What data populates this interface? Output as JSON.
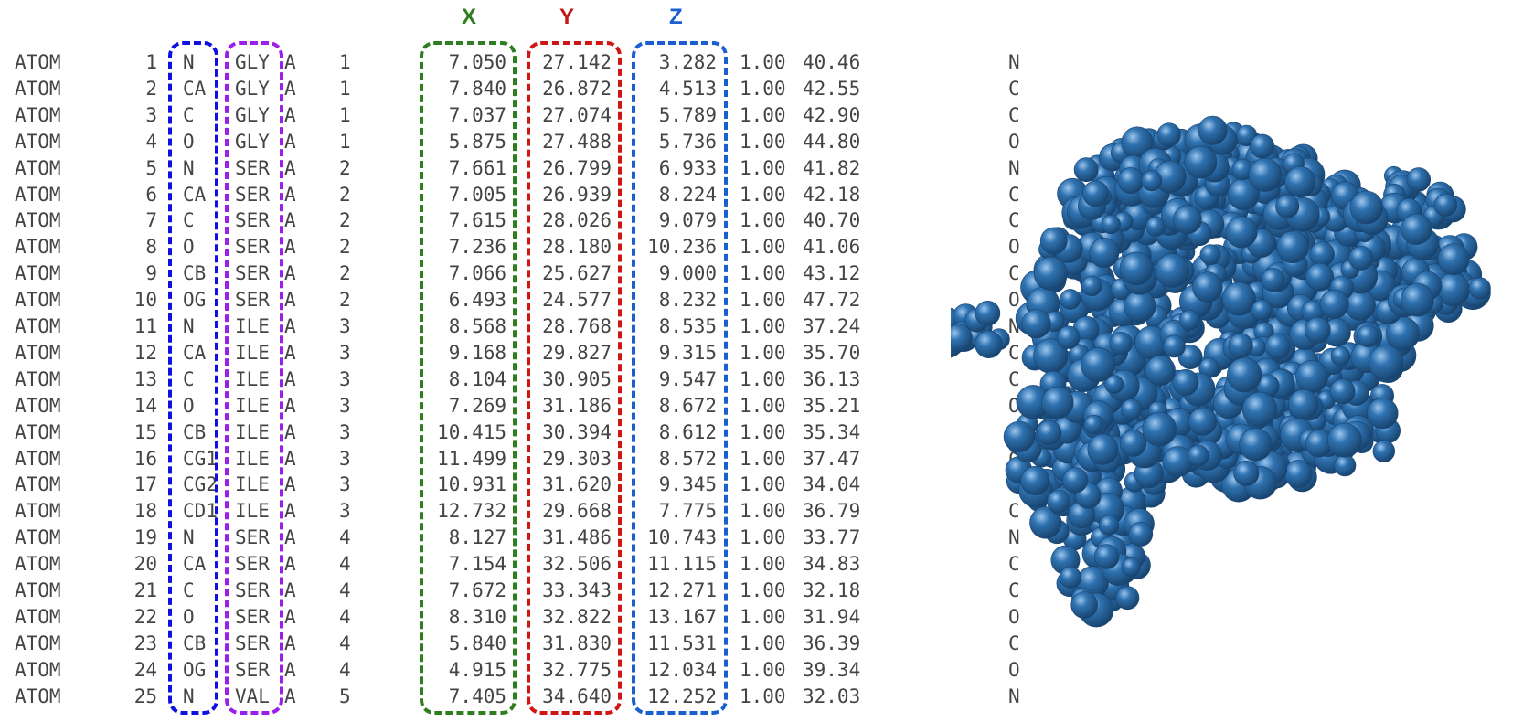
{
  "axis_labels": {
    "x": "X",
    "y": "Y",
    "z": "Z"
  },
  "colors": {
    "text": "#444444",
    "atom_name_box": "#1010e0",
    "residue_box": "#9b1fe8",
    "x_box": "#2e7d1e",
    "y_box": "#d01515",
    "z_box": "#1a5fd0",
    "x_label": "#2e7d1e",
    "y_label": "#c01818",
    "z_label": "#1a5fd0",
    "molecule": "#2f72b0"
  },
  "atoms": [
    {
      "record": "ATOM",
      "serial": "1",
      "name": "N",
      "residue": "GLY",
      "chain": "A",
      "resseq": "1",
      "x": "7.050",
      "y": "27.142",
      "z": "3.282",
      "occupancy": "1.00",
      "bfactor": "40.46",
      "element": "N"
    },
    {
      "record": "ATOM",
      "serial": "2",
      "name": "CA",
      "residue": "GLY",
      "chain": "A",
      "resseq": "1",
      "x": "7.840",
      "y": "26.872",
      "z": "4.513",
      "occupancy": "1.00",
      "bfactor": "42.55",
      "element": "C"
    },
    {
      "record": "ATOM",
      "serial": "3",
      "name": "C",
      "residue": "GLY",
      "chain": "A",
      "resseq": "1",
      "x": "7.037",
      "y": "27.074",
      "z": "5.789",
      "occupancy": "1.00",
      "bfactor": "42.90",
      "element": "C"
    },
    {
      "record": "ATOM",
      "serial": "4",
      "name": "O",
      "residue": "GLY",
      "chain": "A",
      "resseq": "1",
      "x": "5.875",
      "y": "27.488",
      "z": "5.736",
      "occupancy": "1.00",
      "bfactor": "44.80",
      "element": "O"
    },
    {
      "record": "ATOM",
      "serial": "5",
      "name": "N",
      "residue": "SER",
      "chain": "A",
      "resseq": "2",
      "x": "7.661",
      "y": "26.799",
      "z": "6.933",
      "occupancy": "1.00",
      "bfactor": "41.82",
      "element": "N"
    },
    {
      "record": "ATOM",
      "serial": "6",
      "name": "CA",
      "residue": "SER",
      "chain": "A",
      "resseq": "2",
      "x": "7.005",
      "y": "26.939",
      "z": "8.224",
      "occupancy": "1.00",
      "bfactor": "42.18",
      "element": "C"
    },
    {
      "record": "ATOM",
      "serial": "7",
      "name": "C",
      "residue": "SER",
      "chain": "A",
      "resseq": "2",
      "x": "7.615",
      "y": "28.026",
      "z": "9.079",
      "occupancy": "1.00",
      "bfactor": "40.70",
      "element": "C"
    },
    {
      "record": "ATOM",
      "serial": "8",
      "name": "O",
      "residue": "SER",
      "chain": "A",
      "resseq": "2",
      "x": "7.236",
      "y": "28.180",
      "z": "10.236",
      "occupancy": "1.00",
      "bfactor": "41.06",
      "element": "O"
    },
    {
      "record": "ATOM",
      "serial": "9",
      "name": "CB",
      "residue": "SER",
      "chain": "A",
      "resseq": "2",
      "x": "7.066",
      "y": "25.627",
      "z": "9.000",
      "occupancy": "1.00",
      "bfactor": "43.12",
      "element": "C"
    },
    {
      "record": "ATOM",
      "serial": "10",
      "name": "OG",
      "residue": "SER",
      "chain": "A",
      "resseq": "2",
      "x": "6.493",
      "y": "24.577",
      "z": "8.232",
      "occupancy": "1.00",
      "bfactor": "47.72",
      "element": "O"
    },
    {
      "record": "ATOM",
      "serial": "11",
      "name": "N",
      "residue": "ILE",
      "chain": "A",
      "resseq": "3",
      "x": "8.568",
      "y": "28.768",
      "z": "8.535",
      "occupancy": "1.00",
      "bfactor": "37.24",
      "element": "N"
    },
    {
      "record": "ATOM",
      "serial": "12",
      "name": "CA",
      "residue": "ILE",
      "chain": "A",
      "resseq": "3",
      "x": "9.168",
      "y": "29.827",
      "z": "9.315",
      "occupancy": "1.00",
      "bfactor": "35.70",
      "element": "C"
    },
    {
      "record": "ATOM",
      "serial": "13",
      "name": "C",
      "residue": "ILE",
      "chain": "A",
      "resseq": "3",
      "x": "8.104",
      "y": "30.905",
      "z": "9.547",
      "occupancy": "1.00",
      "bfactor": "36.13",
      "element": "C"
    },
    {
      "record": "ATOM",
      "serial": "14",
      "name": "O",
      "residue": "ILE",
      "chain": "A",
      "resseq": "3",
      "x": "7.269",
      "y": "31.186",
      "z": "8.672",
      "occupancy": "1.00",
      "bfactor": "35.21",
      "element": "O"
    },
    {
      "record": "ATOM",
      "serial": "15",
      "name": "CB",
      "residue": "ILE",
      "chain": "A",
      "resseq": "3",
      "x": "10.415",
      "y": "30.394",
      "z": "8.612",
      "occupancy": "1.00",
      "bfactor": "35.34",
      "element": "C"
    },
    {
      "record": "ATOM",
      "serial": "16",
      "name": "CG1",
      "residue": "ILE",
      "chain": "A",
      "resseq": "3",
      "x": "11.499",
      "y": "29.303",
      "z": "8.572",
      "occupancy": "1.00",
      "bfactor": "37.47",
      "element": "C"
    },
    {
      "record": "ATOM",
      "serial": "17",
      "name": "CG2",
      "residue": "ILE",
      "chain": "A",
      "resseq": "3",
      "x": "10.931",
      "y": "31.620",
      "z": "9.345",
      "occupancy": "1.00",
      "bfactor": "34.04",
      "element": "C"
    },
    {
      "record": "ATOM",
      "serial": "18",
      "name": "CD1",
      "residue": "ILE",
      "chain": "A",
      "resseq": "3",
      "x": "12.732",
      "y": "29.668",
      "z": "7.775",
      "occupancy": "1.00",
      "bfactor": "36.79",
      "element": "C"
    },
    {
      "record": "ATOM",
      "serial": "19",
      "name": "N",
      "residue": "SER",
      "chain": "A",
      "resseq": "4",
      "x": "8.127",
      "y": "31.486",
      "z": "10.743",
      "occupancy": "1.00",
      "bfactor": "33.77",
      "element": "N"
    },
    {
      "record": "ATOM",
      "serial": "20",
      "name": "CA",
      "residue": "SER",
      "chain": "A",
      "resseq": "4",
      "x": "7.154",
      "y": "32.506",
      "z": "11.115",
      "occupancy": "1.00",
      "bfactor": "34.83",
      "element": "C"
    },
    {
      "record": "ATOM",
      "serial": "21",
      "name": "C",
      "residue": "SER",
      "chain": "A",
      "resseq": "4",
      "x": "7.672",
      "y": "33.343",
      "z": "12.271",
      "occupancy": "1.00",
      "bfactor": "32.18",
      "element": "C"
    },
    {
      "record": "ATOM",
      "serial": "22",
      "name": "O",
      "residue": "SER",
      "chain": "A",
      "resseq": "4",
      "x": "8.310",
      "y": "32.822",
      "z": "13.167",
      "occupancy": "1.00",
      "bfactor": "31.94",
      "element": "O"
    },
    {
      "record": "ATOM",
      "serial": "23",
      "name": "CB",
      "residue": "SER",
      "chain": "A",
      "resseq": "4",
      "x": "5.840",
      "y": "31.830",
      "z": "11.531",
      "occupancy": "1.00",
      "bfactor": "36.39",
      "element": "C"
    },
    {
      "record": "ATOM",
      "serial": "24",
      "name": "OG",
      "residue": "SER",
      "chain": "A",
      "resseq": "4",
      "x": "4.915",
      "y": "32.775",
      "z": "12.034",
      "occupancy": "1.00",
      "bfactor": "39.34",
      "element": "O"
    },
    {
      "record": "ATOM",
      "serial": "25",
      "name": "N",
      "residue": "VAL",
      "chain": "A",
      "resseq": "5",
      "x": "7.405",
      "y": "34.640",
      "z": "12.252",
      "occupancy": "1.00",
      "bfactor": "32.03",
      "element": "N"
    }
  ]
}
